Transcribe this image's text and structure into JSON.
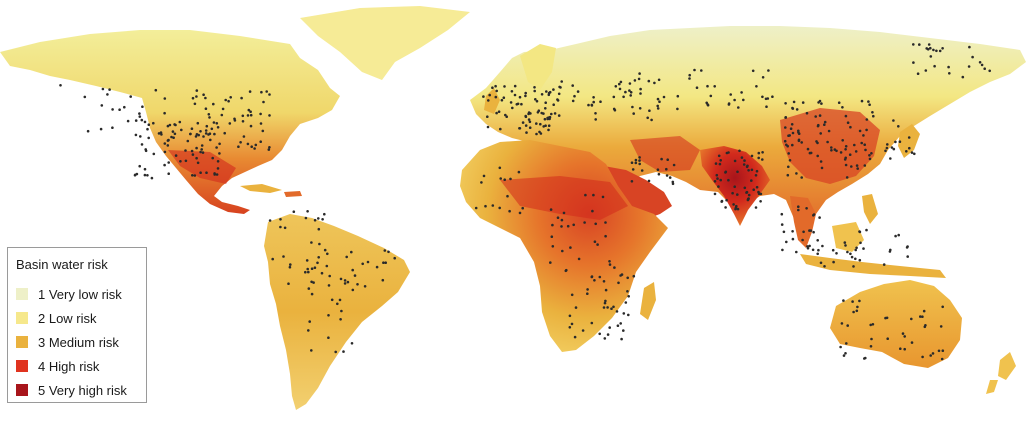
{
  "legend": {
    "title": "Basin water risk",
    "items": [
      {
        "label": "1 Very low risk",
        "color": "#eef0c8"
      },
      {
        "label": "2 Low risk",
        "color": "#f6e88c"
      },
      {
        "label": "3 Medium risk",
        "color": "#eab23e"
      },
      {
        "label": "4 High risk",
        "color": "#e0331f"
      },
      {
        "label": "5 Very high risk",
        "color": "#a8151b"
      }
    ]
  },
  "colors": {
    "ocean": "#ffffff",
    "dot": "#2a2a2a"
  }
}
